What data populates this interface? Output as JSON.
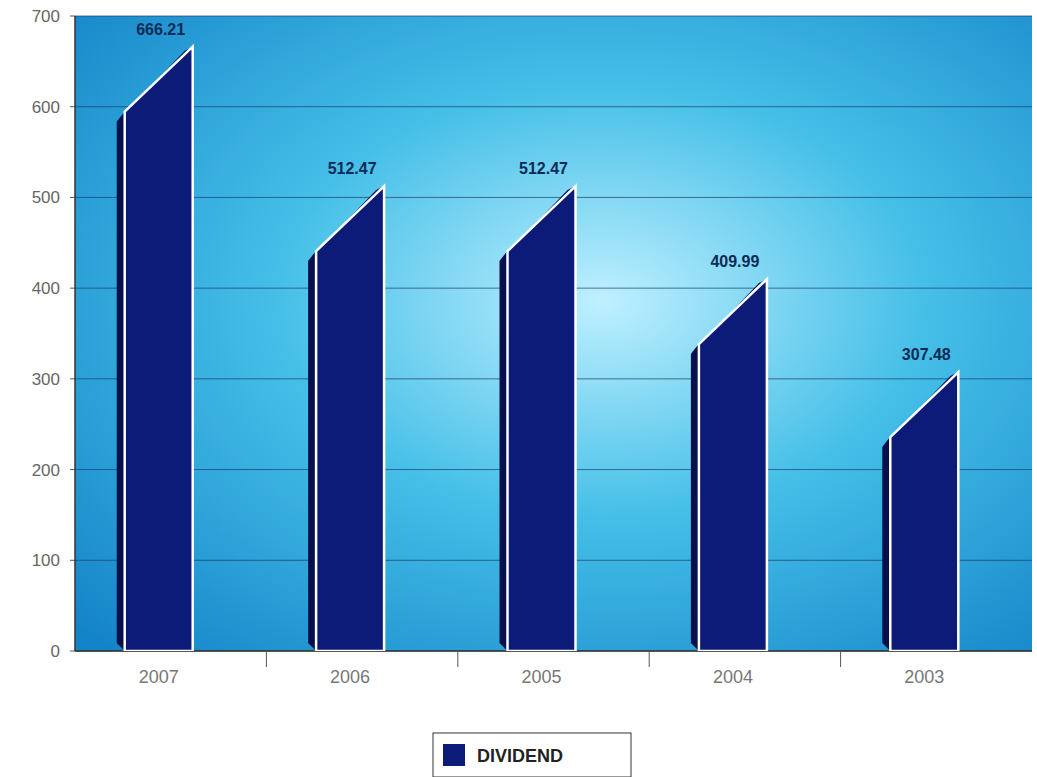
{
  "chart_data": {
    "type": "bar",
    "categories": [
      "2007",
      "2006",
      "2005",
      "2004",
      "2003"
    ],
    "series": [
      {
        "name": "DIVIDEND",
        "color": "#0c1a78",
        "values": [
          666.21,
          512.47,
          512.47,
          409.99,
          307.48
        ]
      }
    ],
    "ylim": [
      0,
      700
    ],
    "yticks": [
      0,
      100,
      200,
      300,
      400,
      500,
      600,
      700
    ],
    "grid": true,
    "legend": "bottom",
    "data_labels": true
  }
}
